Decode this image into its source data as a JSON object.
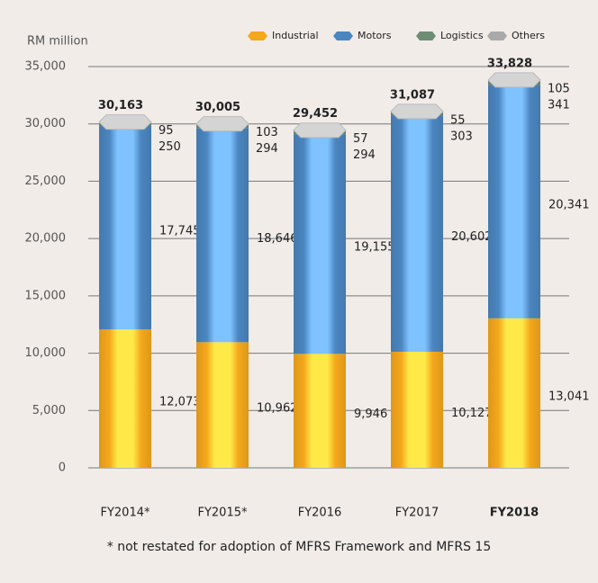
{
  "chart_data": {
    "type": "stacked_bar",
    "y_label": "RM million",
    "categories": [
      "FY2014*",
      "FY2015*",
      "FY2016",
      "FY2017",
      "FY2018"
    ],
    "series": [
      {
        "name": "Industrial",
        "color": "#f5a81c",
        "values": [
          12073,
          10962,
          9946,
          10127,
          13041
        ],
        "value_labels": [
          "12,073",
          "10,962",
          "9,946",
          "10,127",
          "13,041"
        ]
      },
      {
        "name": "Motors",
        "color": "#4b86c0",
        "values": [
          17745,
          18646,
          19155,
          20602,
          20341
        ],
        "value_labels": [
          "17,745",
          "18,646",
          "19,155",
          "20,602",
          "20,341"
        ]
      },
      {
        "name": "Logistics",
        "color": "#6f8c75",
        "values": [
          250,
          294,
          294,
          303,
          341
        ]
      },
      {
        "name": "Others",
        "color": "#a9a9a9",
        "values": [
          95,
          103,
          57,
          55,
          105
        ]
      }
    ],
    "totals": [
      30163,
      30005,
      29452,
      31087,
      33828
    ],
    "totals_labels": [
      "30,163",
      "30,005",
      "29,452",
      "31,087",
      "33,828"
    ],
    "ylim": [
      0,
      35000
    ],
    "yticks": [
      0,
      {
        "value": 5000,
        "label": "5,000"
      },
      {
        "value": 10000,
        "label": "10,000"
      },
      {
        "value": 15000,
        "label": "15,000"
      },
      {
        "value": 20000,
        "label": "20,000"
      },
      {
        "value": 25000,
        "label": "25,000"
      },
      {
        "value": 30000,
        "label": "30,000"
      },
      {
        "value": 35000,
        "label": "35,000"
      }
    ],
    "grid": true,
    "legend": "top",
    "footnote": "*   not restated for adoption of MFRS Framework and MFRS 15"
  }
}
